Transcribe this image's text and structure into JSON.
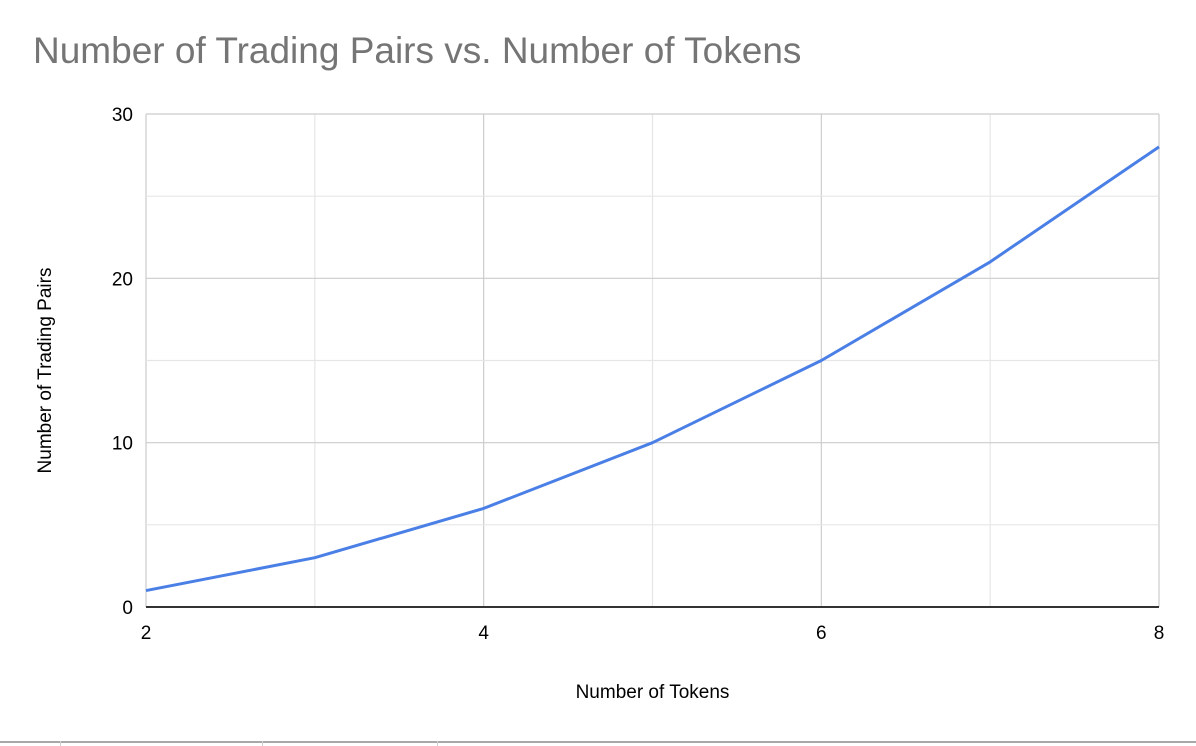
{
  "chart_data": {
    "type": "line",
    "title": "Number of Trading Pairs vs. Number of Tokens",
    "xlabel": "Number of Tokens",
    "ylabel": "Number of Trading Pairs",
    "x": [
      2,
      3,
      4,
      5,
      6,
      7,
      8
    ],
    "series": [
      {
        "values": [
          1,
          3,
          6,
          10,
          15,
          21,
          28
        ],
        "color": "#4a7fe6"
      }
    ],
    "xlim": [
      2,
      8
    ],
    "ylim": [
      0,
      30
    ],
    "xticks": [
      "2",
      "4",
      "6",
      "8"
    ],
    "yticks": [
      "0",
      "10",
      "20",
      "30"
    ],
    "grid": true,
    "legend": "none",
    "colors": {
      "title": "#757575",
      "grid_major": "#cccccc",
      "grid_minor": "#e6e6e6",
      "axis": "#333333"
    }
  }
}
